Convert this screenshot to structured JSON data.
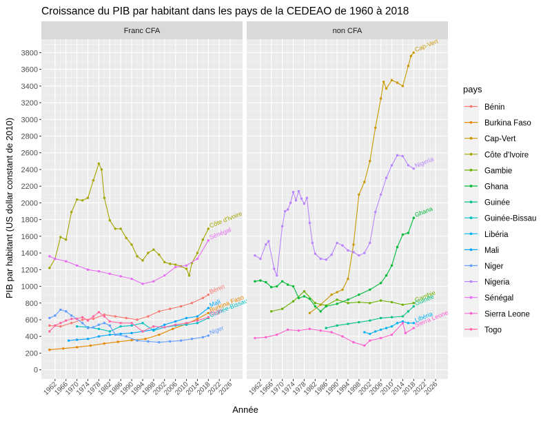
{
  "chart_data": {
    "type": "line",
    "title": "Croissance du PIB par habitant dans les pays de la CEDEAO de 1960 à 2018",
    "xlabel": "Année",
    "ylabel": "PIB par habitant (US dollar constant de 2010)",
    "x_ticks": [
      1962,
      1966,
      1970,
      1974,
      1978,
      1982,
      1986,
      1990,
      1994,
      1998,
      2002,
      2006,
      2010,
      2014,
      2018,
      2022,
      2026
    ],
    "y_ticks": [
      0,
      200,
      400,
      600,
      800,
      1000,
      1200,
      1400,
      1600,
      1800,
      2000,
      2200,
      2400,
      2600,
      2800,
      3000,
      3200,
      3400,
      3600,
      3800
    ],
    "xlim": [
      1957,
      2030.5
    ],
    "ylim": [
      -110,
      3960
    ],
    "facets": [
      "Franc CFA",
      "non CFA"
    ],
    "legend_title": "pays",
    "series": [
      {
        "name": "Bénin",
        "color": "#F8766D",
        "facet": "Franc CFA",
        "label": "Bénin",
        "points": [
          [
            1960,
            530
          ],
          [
            1964,
            520
          ],
          [
            1968,
            560
          ],
          [
            1972,
            600
          ],
          [
            1976,
            610
          ],
          [
            1980,
            660
          ],
          [
            1984,
            640
          ],
          [
            1988,
            620
          ],
          [
            1992,
            600
          ],
          [
            1996,
            640
          ],
          [
            2000,
            700
          ],
          [
            2004,
            730
          ],
          [
            2008,
            760
          ],
          [
            2012,
            800
          ],
          [
            2016,
            860
          ],
          [
            2018,
            900
          ]
        ]
      },
      {
        "name": "Burkina Faso",
        "color": "#E58700",
        "facet": "Franc CFA",
        "label": "Burkina Faso",
        "points": [
          [
            1960,
            240
          ],
          [
            1965,
            255
          ],
          [
            1970,
            270
          ],
          [
            1975,
            290
          ],
          [
            1980,
            315
          ],
          [
            1985,
            335
          ],
          [
            1990,
            355
          ],
          [
            1995,
            370
          ],
          [
            2000,
            420
          ],
          [
            2005,
            490
          ],
          [
            2010,
            550
          ],
          [
            2014,
            610
          ],
          [
            2018,
            680
          ]
        ]
      },
      {
        "name": "Cap-Vert",
        "color": "#C99800",
        "facet": "non CFA",
        "label": "Cap-Vert",
        "points": [
          [
            1980,
            680
          ],
          [
            1984,
            780
          ],
          [
            1988,
            900
          ],
          [
            1990,
            930
          ],
          [
            1992,
            960
          ],
          [
            1994,
            1090
          ],
          [
            1996,
            1500
          ],
          [
            1998,
            2100
          ],
          [
            2000,
            2250
          ],
          [
            2002,
            2500
          ],
          [
            2004,
            2900
          ],
          [
            2006,
            3250
          ],
          [
            2007,
            3450
          ],
          [
            2008,
            3370
          ],
          [
            2010,
            3470
          ],
          [
            2012,
            3440
          ],
          [
            2014,
            3400
          ],
          [
            2016,
            3640
          ],
          [
            2017,
            3760
          ],
          [
            2018,
            3800
          ]
        ]
      },
      {
        "name": "Côte d'Ivoire",
        "color": "#A3A500",
        "facet": "Franc CFA",
        "label": "Côte d'Ivoire",
        "points": [
          [
            1960,
            1220
          ],
          [
            1962,
            1330
          ],
          [
            1964,
            1590
          ],
          [
            1966,
            1560
          ],
          [
            1968,
            1890
          ],
          [
            1970,
            2040
          ],
          [
            1972,
            2030
          ],
          [
            1974,
            2060
          ],
          [
            1976,
            2270
          ],
          [
            1978,
            2470
          ],
          [
            1979,
            2400
          ],
          [
            1980,
            2060
          ],
          [
            1982,
            1790
          ],
          [
            1984,
            1690
          ],
          [
            1986,
            1690
          ],
          [
            1988,
            1580
          ],
          [
            1990,
            1500
          ],
          [
            1992,
            1360
          ],
          [
            1994,
            1310
          ],
          [
            1996,
            1400
          ],
          [
            1998,
            1440
          ],
          [
            2000,
            1380
          ],
          [
            2002,
            1290
          ],
          [
            2004,
            1270
          ],
          [
            2006,
            1260
          ],
          [
            2008,
            1240
          ],
          [
            2010,
            1210
          ],
          [
            2011,
            1130
          ],
          [
            2012,
            1280
          ],
          [
            2014,
            1400
          ],
          [
            2016,
            1560
          ],
          [
            2018,
            1690
          ]
        ]
      },
      {
        "name": "Gambie",
        "color": "#6BB100",
        "facet": "non CFA",
        "label": "Gambie",
        "points": [
          [
            1966,
            700
          ],
          [
            1970,
            730
          ],
          [
            1974,
            820
          ],
          [
            1978,
            940
          ],
          [
            1982,
            800
          ],
          [
            1986,
            770
          ],
          [
            1990,
            840
          ],
          [
            1994,
            800
          ],
          [
            1998,
            810
          ],
          [
            2002,
            800
          ],
          [
            2006,
            830
          ],
          [
            2010,
            810
          ],
          [
            2014,
            780
          ],
          [
            2018,
            800
          ]
        ]
      },
      {
        "name": "Ghana",
        "color": "#00BA38",
        "facet": "non CFA",
        "label": "Ghana",
        "points": [
          [
            1960,
            1060
          ],
          [
            1962,
            1070
          ],
          [
            1964,
            1050
          ],
          [
            1966,
            990
          ],
          [
            1968,
            1000
          ],
          [
            1970,
            1060
          ],
          [
            1972,
            1020
          ],
          [
            1974,
            1000
          ],
          [
            1976,
            860
          ],
          [
            1978,
            880
          ],
          [
            1980,
            850
          ],
          [
            1982,
            760
          ],
          [
            1984,
            700
          ],
          [
            1986,
            760
          ],
          [
            1990,
            790
          ],
          [
            1994,
            840
          ],
          [
            1998,
            900
          ],
          [
            2002,
            960
          ],
          [
            2006,
            1040
          ],
          [
            2008,
            1130
          ],
          [
            2010,
            1250
          ],
          [
            2012,
            1470
          ],
          [
            2014,
            1620
          ],
          [
            2016,
            1640
          ],
          [
            2018,
            1820
          ]
        ]
      },
      {
        "name": "Guinée",
        "color": "#00C08B",
        "facet": "non CFA",
        "label": "Guinée",
        "points": [
          [
            1986,
            500
          ],
          [
            1990,
            530
          ],
          [
            1994,
            550
          ],
          [
            1998,
            570
          ],
          [
            2002,
            590
          ],
          [
            2006,
            620
          ],
          [
            2010,
            630
          ],
          [
            2014,
            640
          ],
          [
            2016,
            700
          ],
          [
            2018,
            760
          ]
        ]
      },
      {
        "name": "Guinée-Bissau",
        "color": "#00BFC4",
        "facet": "Franc CFA",
        "label": "Guinée-Bissau",
        "points": [
          [
            1970,
            520
          ],
          [
            1974,
            510
          ],
          [
            1978,
            490
          ],
          [
            1982,
            460
          ],
          [
            1986,
            520
          ],
          [
            1990,
            530
          ],
          [
            1994,
            560
          ],
          [
            1998,
            470
          ],
          [
            2002,
            510
          ],
          [
            2006,
            530
          ],
          [
            2010,
            540
          ],
          [
            2014,
            560
          ],
          [
            2018,
            620
          ]
        ]
      },
      {
        "name": "Libéria",
        "color": "#00B4F0",
        "facet": "non CFA",
        "label": "Libéria",
        "points": [
          [
            2000,
            450
          ],
          [
            2002,
            430
          ],
          [
            2004,
            460
          ],
          [
            2006,
            480
          ],
          [
            2008,
            500
          ],
          [
            2010,
            520
          ],
          [
            2012,
            560
          ],
          [
            2014,
            580
          ],
          [
            2016,
            560
          ],
          [
            2018,
            560
          ]
        ]
      },
      {
        "name": "Mali",
        "color": "#00A5FF",
        "facet": "Franc CFA",
        "label": "Mali",
        "points": [
          [
            1967,
            350
          ],
          [
            1970,
            360
          ],
          [
            1974,
            370
          ],
          [
            1978,
            400
          ],
          [
            1982,
            420
          ],
          [
            1986,
            430
          ],
          [
            1990,
            440
          ],
          [
            1994,
            460
          ],
          [
            1998,
            480
          ],
          [
            2002,
            540
          ],
          [
            2006,
            580
          ],
          [
            2010,
            620
          ],
          [
            2014,
            640
          ],
          [
            2018,
            740
          ]
        ]
      },
      {
        "name": "Niger",
        "color": "#619CFF",
        "facet": "Franc CFA",
        "label": "Niger",
        "points": [
          [
            1960,
            620
          ],
          [
            1962,
            650
          ],
          [
            1964,
            720
          ],
          [
            1966,
            700
          ],
          [
            1968,
            650
          ],
          [
            1970,
            610
          ],
          [
            1972,
            560
          ],
          [
            1974,
            500
          ],
          [
            1976,
            510
          ],
          [
            1978,
            540
          ],
          [
            1980,
            560
          ],
          [
            1982,
            530
          ],
          [
            1984,
            420
          ],
          [
            1988,
            400
          ],
          [
            1992,
            350
          ],
          [
            1996,
            340
          ],
          [
            2000,
            330
          ],
          [
            2004,
            340
          ],
          [
            2008,
            350
          ],
          [
            2012,
            370
          ],
          [
            2016,
            390
          ],
          [
            2018,
            410
          ]
        ]
      },
      {
        "name": "Nigeria",
        "color": "#B983FF",
        "facet": "non CFA",
        "label": "Nigeria",
        "points": [
          [
            1960,
            1370
          ],
          [
            1962,
            1330
          ],
          [
            1964,
            1500
          ],
          [
            1965,
            1540
          ],
          [
            1967,
            1210
          ],
          [
            1968,
            1130
          ],
          [
            1970,
            1720
          ],
          [
            1971,
            1900
          ],
          [
            1972,
            1920
          ],
          [
            1973,
            2000
          ],
          [
            1974,
            2130
          ],
          [
            1975,
            2030
          ],
          [
            1976,
            2140
          ],
          [
            1977,
            2050
          ],
          [
            1978,
            1990
          ],
          [
            1979,
            2060
          ],
          [
            1980,
            1760
          ],
          [
            1981,
            1520
          ],
          [
            1982,
            1390
          ],
          [
            1984,
            1330
          ],
          [
            1986,
            1320
          ],
          [
            1988,
            1380
          ],
          [
            1990,
            1520
          ],
          [
            1992,
            1490
          ],
          [
            1994,
            1430
          ],
          [
            1996,
            1410
          ],
          [
            1998,
            1370
          ],
          [
            2000,
            1400
          ],
          [
            2002,
            1520
          ],
          [
            2004,
            1890
          ],
          [
            2006,
            2100
          ],
          [
            2008,
            2300
          ],
          [
            2010,
            2450
          ],
          [
            2012,
            2570
          ],
          [
            2014,
            2560
          ],
          [
            2016,
            2450
          ],
          [
            2018,
            2410
          ]
        ]
      },
      {
        "name": "Sénégal",
        "color": "#E76BF3",
        "facet": "Franc CFA",
        "label": "Sénégal",
        "points": [
          [
            1960,
            1360
          ],
          [
            1962,
            1330
          ],
          [
            1966,
            1300
          ],
          [
            1970,
            1250
          ],
          [
            1974,
            1200
          ],
          [
            1978,
            1180
          ],
          [
            1982,
            1150
          ],
          [
            1986,
            1120
          ],
          [
            1990,
            1090
          ],
          [
            1994,
            1030
          ],
          [
            1998,
            1060
          ],
          [
            2002,
            1130
          ],
          [
            2006,
            1230
          ],
          [
            2010,
            1250
          ],
          [
            2014,
            1330
          ],
          [
            2018,
            1550
          ]
        ]
      },
      {
        "name": "Sierra Leone",
        "color": "#FD61D1",
        "facet": "non CFA",
        "label": "Sierra Leone",
        "points": [
          [
            1960,
            380
          ],
          [
            1964,
            390
          ],
          [
            1968,
            420
          ],
          [
            1972,
            480
          ],
          [
            1976,
            470
          ],
          [
            1980,
            490
          ],
          [
            1984,
            470
          ],
          [
            1988,
            450
          ],
          [
            1992,
            400
          ],
          [
            1996,
            330
          ],
          [
            2000,
            290
          ],
          [
            2002,
            350
          ],
          [
            2006,
            380
          ],
          [
            2010,
            420
          ],
          [
            2014,
            560
          ],
          [
            2015,
            440
          ],
          [
            2018,
            500
          ]
        ]
      },
      {
        "name": "Togo",
        "color": "#FF67A4",
        "facet": "Franc CFA",
        "label": "Togo",
        "points": [
          [
            1960,
            460
          ],
          [
            1962,
            530
          ],
          [
            1964,
            560
          ],
          [
            1966,
            590
          ],
          [
            1968,
            610
          ],
          [
            1970,
            610
          ],
          [
            1972,
            630
          ],
          [
            1974,
            590
          ],
          [
            1976,
            640
          ],
          [
            1978,
            690
          ],
          [
            1980,
            640
          ],
          [
            1982,
            580
          ],
          [
            1986,
            560
          ],
          [
            1990,
            560
          ],
          [
            1994,
            460
          ],
          [
            1998,
            520
          ],
          [
            2002,
            510
          ],
          [
            2006,
            540
          ],
          [
            2010,
            560
          ],
          [
            2014,
            590
          ],
          [
            2018,
            630
          ]
        ]
      }
    ]
  }
}
